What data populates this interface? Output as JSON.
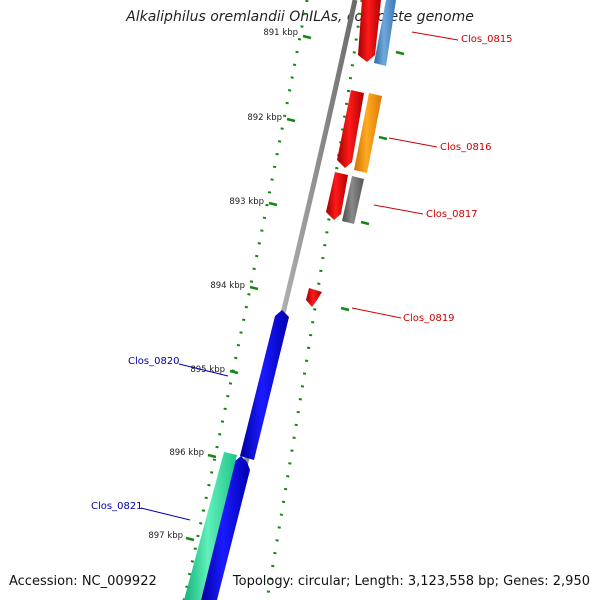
{
  "title": "Alkaliphilus oremlandii OhILAs, complete genome",
  "footer": {
    "accession": "Accession: NC_009922",
    "summary": "Topology: circular; Length: 3,123,558 bp; Genes: 2,950"
  },
  "ticks": [
    "891 kbp",
    "892 kbp",
    "893 kbp",
    "894 kbp",
    "895 kbp",
    "896 kbp",
    "897 kbp"
  ],
  "genes": [
    {
      "name": "Clos_0815",
      "color": "#cc0000"
    },
    {
      "name": "Clos_0816",
      "color": "#cc0000"
    },
    {
      "name": "Clos_0817",
      "color": "#cc0000"
    },
    {
      "name": "Clos_0819",
      "color": "#cc0000"
    },
    {
      "name": "Clos_0820",
      "color": "#0000aa"
    },
    {
      "name": "Clos_0821",
      "color": "#0000aa"
    }
  ],
  "colors": {
    "backbone": "#808080",
    "tick": "#138613",
    "forward_gene": "#ff0000",
    "reverse_gene": "#0000ff",
    "cog_blue": "#4f8fcc",
    "cog_orange": "#ff9900",
    "cog_gray": "#6e6e6e",
    "cog_green": "#33e6a0"
  }
}
